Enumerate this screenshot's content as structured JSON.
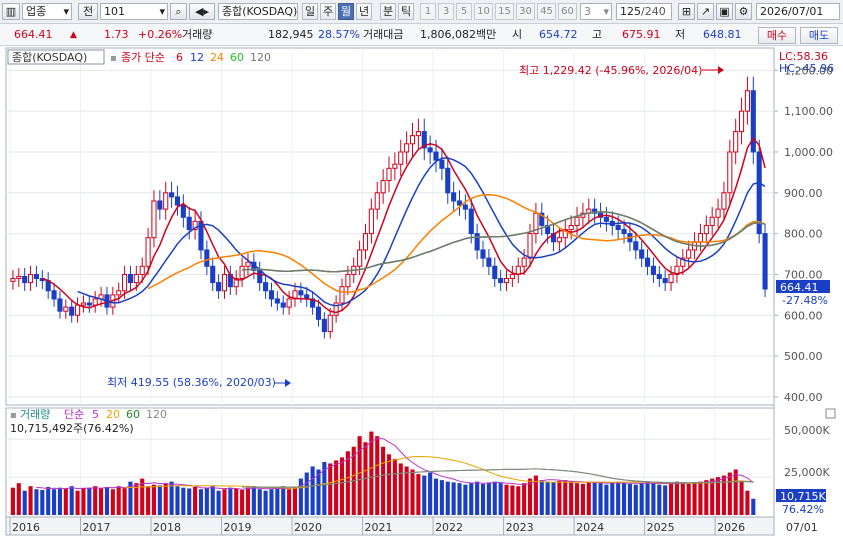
{
  "toolbar": {
    "market_select": "업종",
    "prev_label": "전",
    "code_value": "101",
    "stock_name": "종합(KOSDAQ)",
    "periods": [
      {
        "label": "일",
        "selected": false
      },
      {
        "label": "주",
        "selected": false
      },
      {
        "label": "월",
        "selected": true
      },
      {
        "label": "년",
        "selected": false
      },
      {
        "label": "분",
        "selected": false
      },
      {
        "label": "틱",
        "selected": false
      }
    ],
    "intervals": [
      "1",
      "3",
      "5",
      "10",
      "15",
      "30",
      "45",
      "60"
    ],
    "interval_select": "3",
    "count_display": "125",
    "count_total": "/240",
    "date_value": "2026/07/01"
  },
  "infobar": {
    "price": "664.41",
    "change": "1.73",
    "change_pct": "+0.26%",
    "volume_label": "거래량",
    "volume_value": "182,945",
    "volume_pct": "28.57%",
    "amount_label": "거래대금",
    "amount_value": "1,806,082백만",
    "open_label": "시",
    "open_value": "654.72",
    "high_label": "고",
    "high_value": "675.91",
    "low_label": "저",
    "low_value": "648.81",
    "buy_label": "매수",
    "sell_label": "매도"
  },
  "price_panel": {
    "title": "종합(KOSDAQ)",
    "legend_label": "종가 단순",
    "ma_periods": [
      {
        "label": "6",
        "color": "#d0021b"
      },
      {
        "label": "12",
        "color": "#1a3fc4"
      },
      {
        "label": "24",
        "color": "#ff7f00"
      },
      {
        "label": "60",
        "color": "#22c322"
      },
      {
        "label": "120",
        "color": "#777777"
      }
    ],
    "lc_label": "LC:58.36",
    "hc_label": "HC:-45.96",
    "max_annotation": "최고 1,229.42 (-45.96%, 2026/04)",
    "min_annotation": "최저 419.55 (58.36%, 2020/03)",
    "current_price_tag": "664.41",
    "current_pct_tag": "-27.48%",
    "y_ticks": [
      "1,200.00",
      "1,100.00",
      "1,000.00",
      "900.00",
      "800.00",
      "700.00",
      "600.00",
      "500.00",
      "400.00"
    ]
  },
  "volume_panel": {
    "title": "거래량",
    "legend_label": "단순",
    "ma_periods": [
      {
        "label": "5",
        "color": "#b832c9"
      },
      {
        "label": "20",
        "color": "#e8a400"
      },
      {
        "label": "60",
        "color": "#228b22"
      },
      {
        "label": "120",
        "color": "#888888"
      }
    ],
    "info": "10,715,492주(76.42%)",
    "current_tag": "10,715K",
    "current_pct": "76.42%",
    "y_ticks": [
      "50,000K",
      "25,000K"
    ]
  },
  "x_axis": {
    "years": [
      "2016",
      "2017",
      "2018",
      "2019",
      "2020",
      "2021",
      "2022",
      "2023",
      "2024",
      "2025",
      "2026"
    ],
    "right_label": "07/01"
  },
  "chart_data": {
    "type": "candlestick",
    "interval": "monthly",
    "price_axis": {
      "ylim": [
        390,
        1240
      ]
    },
    "volume_axis": {
      "ylim": [
        0,
        60000
      ],
      "unit": "K"
    },
    "series_close": [
      690,
      695,
      680,
      700,
      690,
      685,
      660,
      640,
      610,
      620,
      600,
      625,
      630,
      625,
      640,
      650,
      620,
      650,
      660,
      700,
      680,
      700,
      720,
      790,
      880,
      860,
      900,
      890,
      870,
      840,
      810,
      830,
      760,
      720,
      680,
      660,
      700,
      670,
      690,
      720,
      730,
      710,
      680,
      660,
      640,
      630,
      620,
      640,
      660,
      650,
      640,
      620,
      590,
      560,
      600,
      630,
      670,
      700,
      720,
      760,
      800,
      860,
      900,
      930,
      960,
      970,
      1000,
      1020,
      1040,
      1050,
      1010,
      1000,
      980,
      960,
      900,
      880,
      870,
      860,
      800,
      760,
      740,
      720,
      690,
      680,
      690,
      700,
      720,
      740,
      800,
      850,
      820,
      800,
      780,
      790,
      810,
      820,
      840,
      850,
      860,
      850,
      840,
      830,
      820,
      810,
      800,
      780,
      760,
      740,
      720,
      700,
      690,
      680,
      700,
      720,
      740,
      760,
      780,
      800,
      820,
      840,
      860,
      900,
      1000,
      1050,
      1100,
      1150,
      1000,
      800,
      664.41
    ],
    "series_volume": [
      18000,
      21000,
      16000,
      19000,
      17000,
      16500,
      18500,
      17000,
      18000,
      17500,
      19000,
      16000,
      17500,
      18000,
      19000,
      17500,
      18500,
      17000,
      19000,
      18000,
      22000,
      21000,
      24000,
      19000,
      20000,
      19500,
      21000,
      22000,
      19000,
      18000,
      17500,
      18500,
      17000,
      18000,
      19000,
      16000,
      17000,
      18000,
      17500,
      16500,
      18000,
      19000,
      17000,
      16000,
      17000,
      18500,
      19000,
      17000,
      18000,
      24000,
      28000,
      32000,
      30000,
      35000,
      34000,
      36000,
      38000,
      42000,
      45000,
      52000,
      48000,
      55000,
      52000,
      45000,
      40000,
      37000,
      34000,
      32000,
      30000,
      27000,
      26000,
      28000,
      24000,
      23000,
      22000,
      21500,
      21000,
      20000,
      21000,
      22000,
      20500,
      21500,
      22000,
      21000,
      20000,
      19500,
      19000,
      21000,
      24000,
      26000,
      23000,
      22000,
      21500,
      22500,
      23000,
      22000,
      21000,
      20500,
      21500,
      22000,
      21000,
      20000,
      21000,
      22000,
      21000,
      20500,
      20000,
      21000,
      22000,
      21000,
      20000,
      19500,
      21000,
      22000,
      21500,
      20500,
      21000,
      22000,
      23000,
      24000,
      25000,
      26000,
      28000,
      30000,
      22000,
      16000,
      10715
    ]
  }
}
